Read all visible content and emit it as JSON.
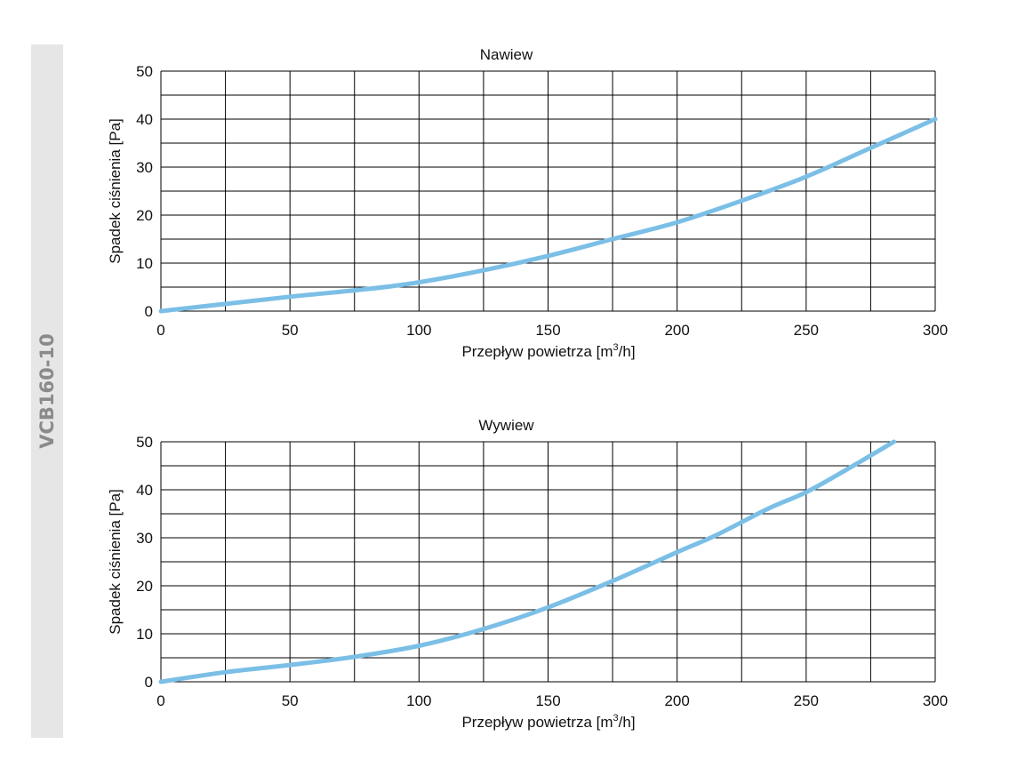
{
  "side_label": "VCB160-10",
  "colors": {
    "curve": "#7bbfe6",
    "grid": "#000000",
    "band": "#e6e6e6"
  },
  "chart_data": [
    {
      "type": "line",
      "title": "Nawiew",
      "xlabel_main": "Przepływ powietrza [m",
      "xlabel_sup": "3",
      "xlabel_end": "/h]",
      "ylabel": "Spadek ciśnienia [Pa]",
      "xlim": [
        0,
        300
      ],
      "ylim": [
        0,
        50
      ],
      "x_ticks": [
        "0",
        "50",
        "100",
        "150",
        "200",
        "250",
        "300"
      ],
      "y_ticks": [
        "0",
        "10",
        "20",
        "30",
        "40",
        "50"
      ],
      "grid": true,
      "x_gridlines": [
        0,
        25,
        50,
        75,
        100,
        125,
        150,
        175,
        200,
        225,
        250,
        275,
        300
      ],
      "y_gridlines": [
        0,
        5,
        10,
        15,
        20,
        25,
        30,
        35,
        40,
        45,
        50
      ],
      "series": [
        {
          "x": [
            0,
            25,
            50,
            80,
            100,
            125,
            150,
            175,
            200,
            225,
            250,
            275,
            300
          ],
          "y": [
            0,
            1.5,
            3,
            4.6,
            6,
            8.5,
            11.5,
            15,
            18.5,
            23,
            28,
            34,
            40
          ]
        }
      ]
    },
    {
      "type": "line",
      "title": "Wywiew",
      "xlabel_main": "Przepływ powietrza [m",
      "xlabel_sup": "3",
      "xlabel_end": "/h]",
      "ylabel": "Spadek ciśnienia [Pa]",
      "xlim": [
        0,
        300
      ],
      "ylim": [
        0,
        50
      ],
      "x_ticks": [
        "0",
        "50",
        "100",
        "150",
        "200",
        "250",
        "300"
      ],
      "y_ticks": [
        "0",
        "10",
        "20",
        "30",
        "40",
        "50"
      ],
      "grid": true,
      "x_gridlines": [
        0,
        25,
        50,
        75,
        100,
        125,
        150,
        175,
        200,
        225,
        250,
        275,
        300
      ],
      "y_gridlines": [
        0,
        5,
        10,
        15,
        20,
        25,
        30,
        35,
        40,
        45,
        50
      ],
      "series": [
        {
          "x": [
            0,
            25,
            50,
            75,
            100,
            125,
            150,
            175,
            200,
            215,
            235,
            250,
            265,
            284
          ],
          "y": [
            0,
            2,
            3.5,
            5.2,
            7.5,
            11,
            15.5,
            21,
            27,
            30.5,
            36,
            39.5,
            44,
            50
          ]
        }
      ]
    }
  ]
}
